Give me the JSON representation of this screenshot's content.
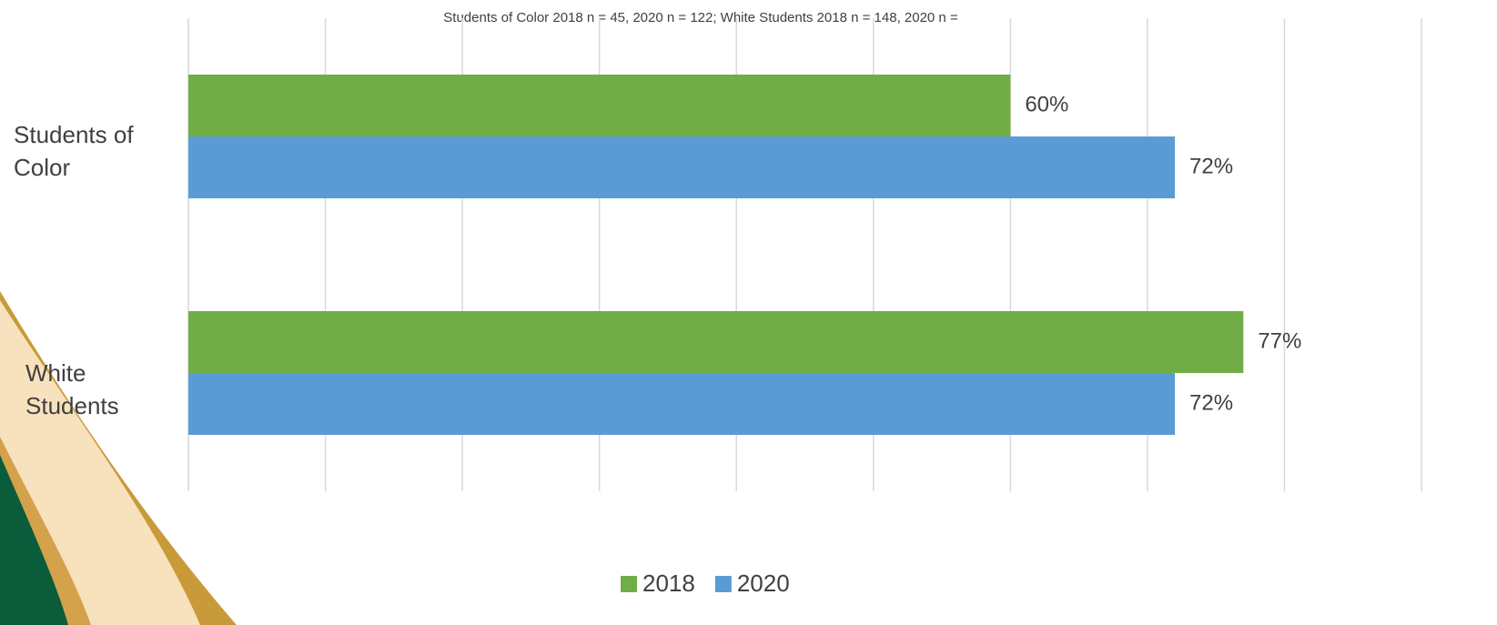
{
  "chart_data": {
    "type": "bar",
    "orientation": "horizontal",
    "title": "Students of Color 2018 n = 45, 2020 n = 122; White Students 2018 n = 148, 2020 n =",
    "categories": [
      "Students of Color",
      "White Students"
    ],
    "series": [
      {
        "name": "2018",
        "color": "#70ad47",
        "values": [
          60,
          77
        ],
        "value_labels": [
          "60%",
          "77%"
        ]
      },
      {
        "name": "2020",
        "color": "#5b9bd5",
        "values": [
          72,
          72
        ],
        "value_labels": [
          "72%",
          "72%"
        ]
      }
    ],
    "xlim": [
      0,
      90
    ],
    "xticks": [
      0,
      10,
      20,
      30,
      40,
      50,
      60,
      70,
      80,
      90
    ],
    "grid": true,
    "legend": "bottom"
  }
}
